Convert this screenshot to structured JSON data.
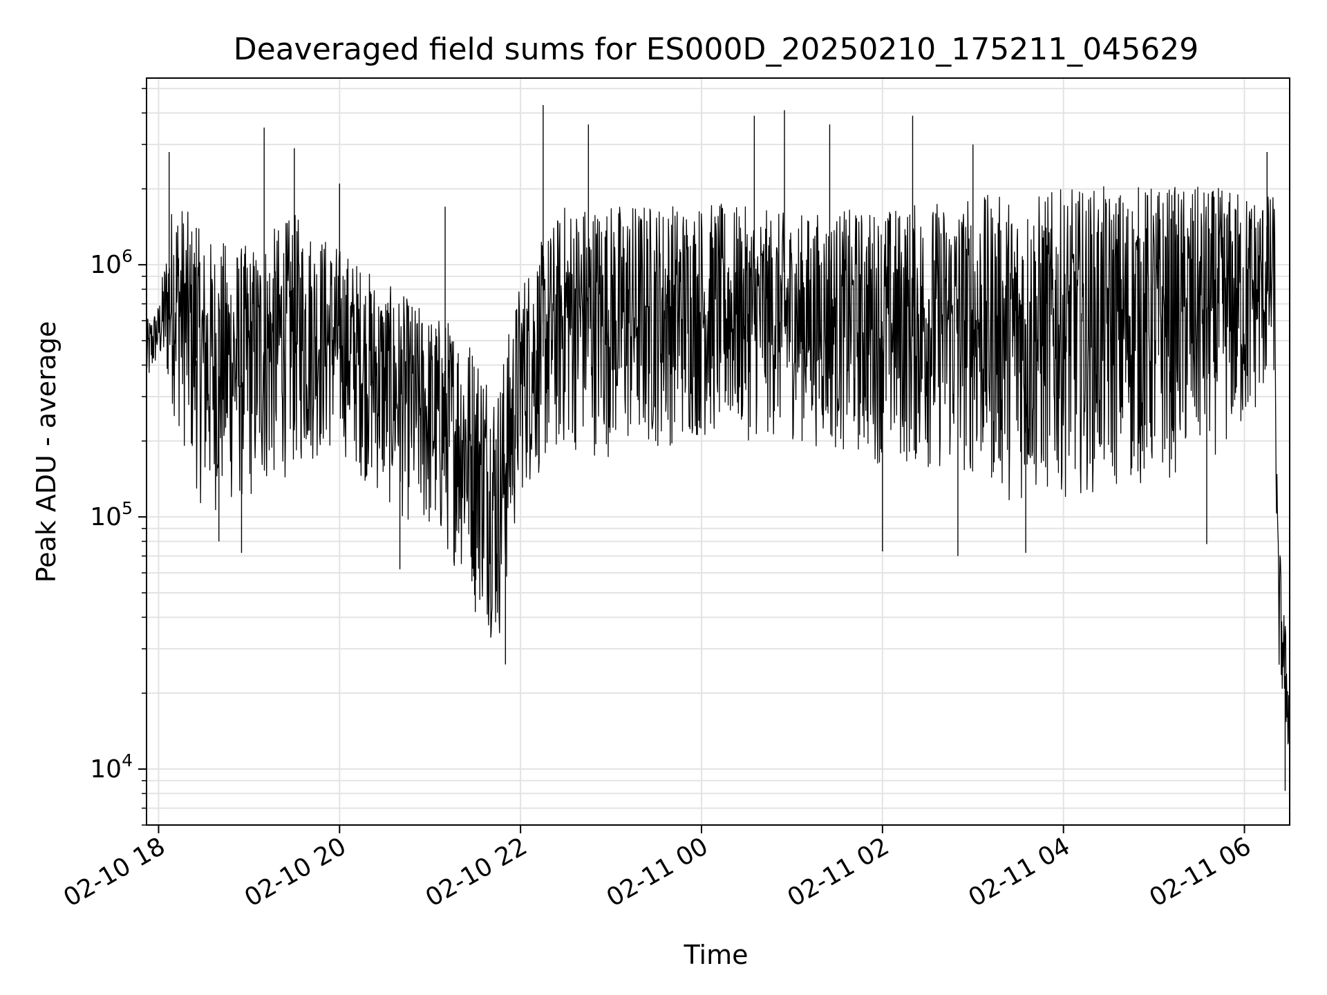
{
  "chart_data": {
    "type": "line",
    "title": "Deaveraged field sums for ES000D_20250210_175211_045629",
    "xlabel": "Time",
    "ylabel": "Peak ADU - average",
    "yscale": "log",
    "xlim": [
      "2025-02-10 17:52",
      "2025-02-11 06:30"
    ],
    "ylim": [
      6000,
      5500000
    ],
    "grid": true,
    "line_color": "#000000",
    "x_ticks": [
      {
        "at": "2025-02-10 18:00",
        "label": "02-10 18"
      },
      {
        "at": "2025-02-10 20:00",
        "label": "02-10 20"
      },
      {
        "at": "2025-02-10 22:00",
        "label": "02-10 22"
      },
      {
        "at": "2025-02-11 00:00",
        "label": "02-11 00"
      },
      {
        "at": "2025-02-11 02:00",
        "label": "02-11 02"
      },
      {
        "at": "2025-02-11 04:00",
        "label": "02-11 04"
      },
      {
        "at": "2025-02-11 06:00",
        "label": "02-11 06"
      }
    ],
    "y_ticks": [
      {
        "value": 10000,
        "base": "10",
        "exp": "4"
      },
      {
        "value": 100000,
        "base": "10",
        "exp": "5"
      },
      {
        "value": 1000000,
        "base": "10",
        "exp": "6"
      }
    ],
    "series": [
      {
        "envelope": [
          {
            "x": "2025-02-10 17:52",
            "low": 300000,
            "high": 600000
          },
          {
            "x": "2025-02-10 18:00",
            "low": 420000,
            "high": 700000
          },
          {
            "x": "2025-02-10 18:10",
            "low": 250000,
            "high": 2000000
          },
          {
            "x": "2025-02-10 18:30",
            "low": 100000,
            "high": 1300000
          },
          {
            "x": "2025-02-10 19:00",
            "low": 110000,
            "high": 1200000
          },
          {
            "x": "2025-02-10 19:30",
            "low": 150000,
            "high": 1600000
          },
          {
            "x": "2025-02-10 20:00",
            "low": 180000,
            "high": 1200000
          },
          {
            "x": "2025-02-10 20:30",
            "low": 110000,
            "high": 850000
          },
          {
            "x": "2025-02-10 21:00",
            "low": 80000,
            "high": 650000
          },
          {
            "x": "2025-02-10 21:20",
            "low": 60000,
            "high": 600000
          },
          {
            "x": "2025-02-10 21:35",
            "low": 40000,
            "high": 450000
          },
          {
            "x": "2025-02-10 21:45",
            "low": 28000,
            "high": 350000
          },
          {
            "x": "2025-02-10 22:00",
            "low": 120000,
            "high": 900000
          },
          {
            "x": "2025-02-10 22:30",
            "low": 180000,
            "high": 1800000
          },
          {
            "x": "2025-02-10 23:00",
            "low": 170000,
            "high": 1800000
          },
          {
            "x": "2025-02-11 00:00",
            "low": 200000,
            "high": 1800000
          },
          {
            "x": "2025-02-11 01:00",
            "low": 200000,
            "high": 1600000
          },
          {
            "x": "2025-02-11 02:00",
            "low": 160000,
            "high": 1700000
          },
          {
            "x": "2025-02-11 03:00",
            "low": 140000,
            "high": 1900000
          },
          {
            "x": "2025-02-11 03:30",
            "low": 110000,
            "high": 1900000
          },
          {
            "x": "2025-02-11 04:00",
            "low": 120000,
            "high": 2000000
          },
          {
            "x": "2025-02-11 05:00",
            "low": 130000,
            "high": 2100000
          },
          {
            "x": "2025-02-11 06:00",
            "low": 200000,
            "high": 2000000
          },
          {
            "x": "2025-02-11 06:20",
            "low": 350000,
            "high": 1900000
          },
          {
            "x": "2025-02-11 06:22",
            "low": 25000,
            "high": 100000
          },
          {
            "x": "2025-02-11 06:30",
            "low": 10000,
            "high": 22000
          }
        ],
        "spikes": [
          {
            "x": "2025-02-10 18:07",
            "y": 2800000
          },
          {
            "x": "2025-02-10 18:25",
            "y": 1400000
          },
          {
            "x": "2025-02-10 18:40",
            "y": 80000
          },
          {
            "x": "2025-02-10 18:55",
            "y": 72000
          },
          {
            "x": "2025-02-10 19:10",
            "y": 3500000
          },
          {
            "x": "2025-02-10 19:30",
            "y": 2900000
          },
          {
            "x": "2025-02-10 20:00",
            "y": 2100000
          },
          {
            "x": "2025-02-10 20:40",
            "y": 62000
          },
          {
            "x": "2025-02-10 21:10",
            "y": 1700000
          },
          {
            "x": "2025-02-10 21:30",
            "y": 42000
          },
          {
            "x": "2025-02-10 21:50",
            "y": 26000
          },
          {
            "x": "2025-02-10 22:15",
            "y": 4300000
          },
          {
            "x": "2025-02-10 22:45",
            "y": 3600000
          },
          {
            "x": "2025-02-11 00:35",
            "y": 3900000
          },
          {
            "x": "2025-02-11 00:55",
            "y": 4100000
          },
          {
            "x": "2025-02-11 01:25",
            "y": 3600000
          },
          {
            "x": "2025-02-11 02:00",
            "y": 73000
          },
          {
            "x": "2025-02-11 02:20",
            "y": 3900000
          },
          {
            "x": "2025-02-11 02:50",
            "y": 70000
          },
          {
            "x": "2025-02-11 03:00",
            "y": 3000000
          },
          {
            "x": "2025-02-11 03:35",
            "y": 72000
          },
          {
            "x": "2025-02-11 05:35",
            "y": 78000
          },
          {
            "x": "2025-02-11 06:15",
            "y": 2800000
          },
          {
            "x": "2025-02-11 06:27",
            "y": 8200
          }
        ]
      }
    ]
  }
}
